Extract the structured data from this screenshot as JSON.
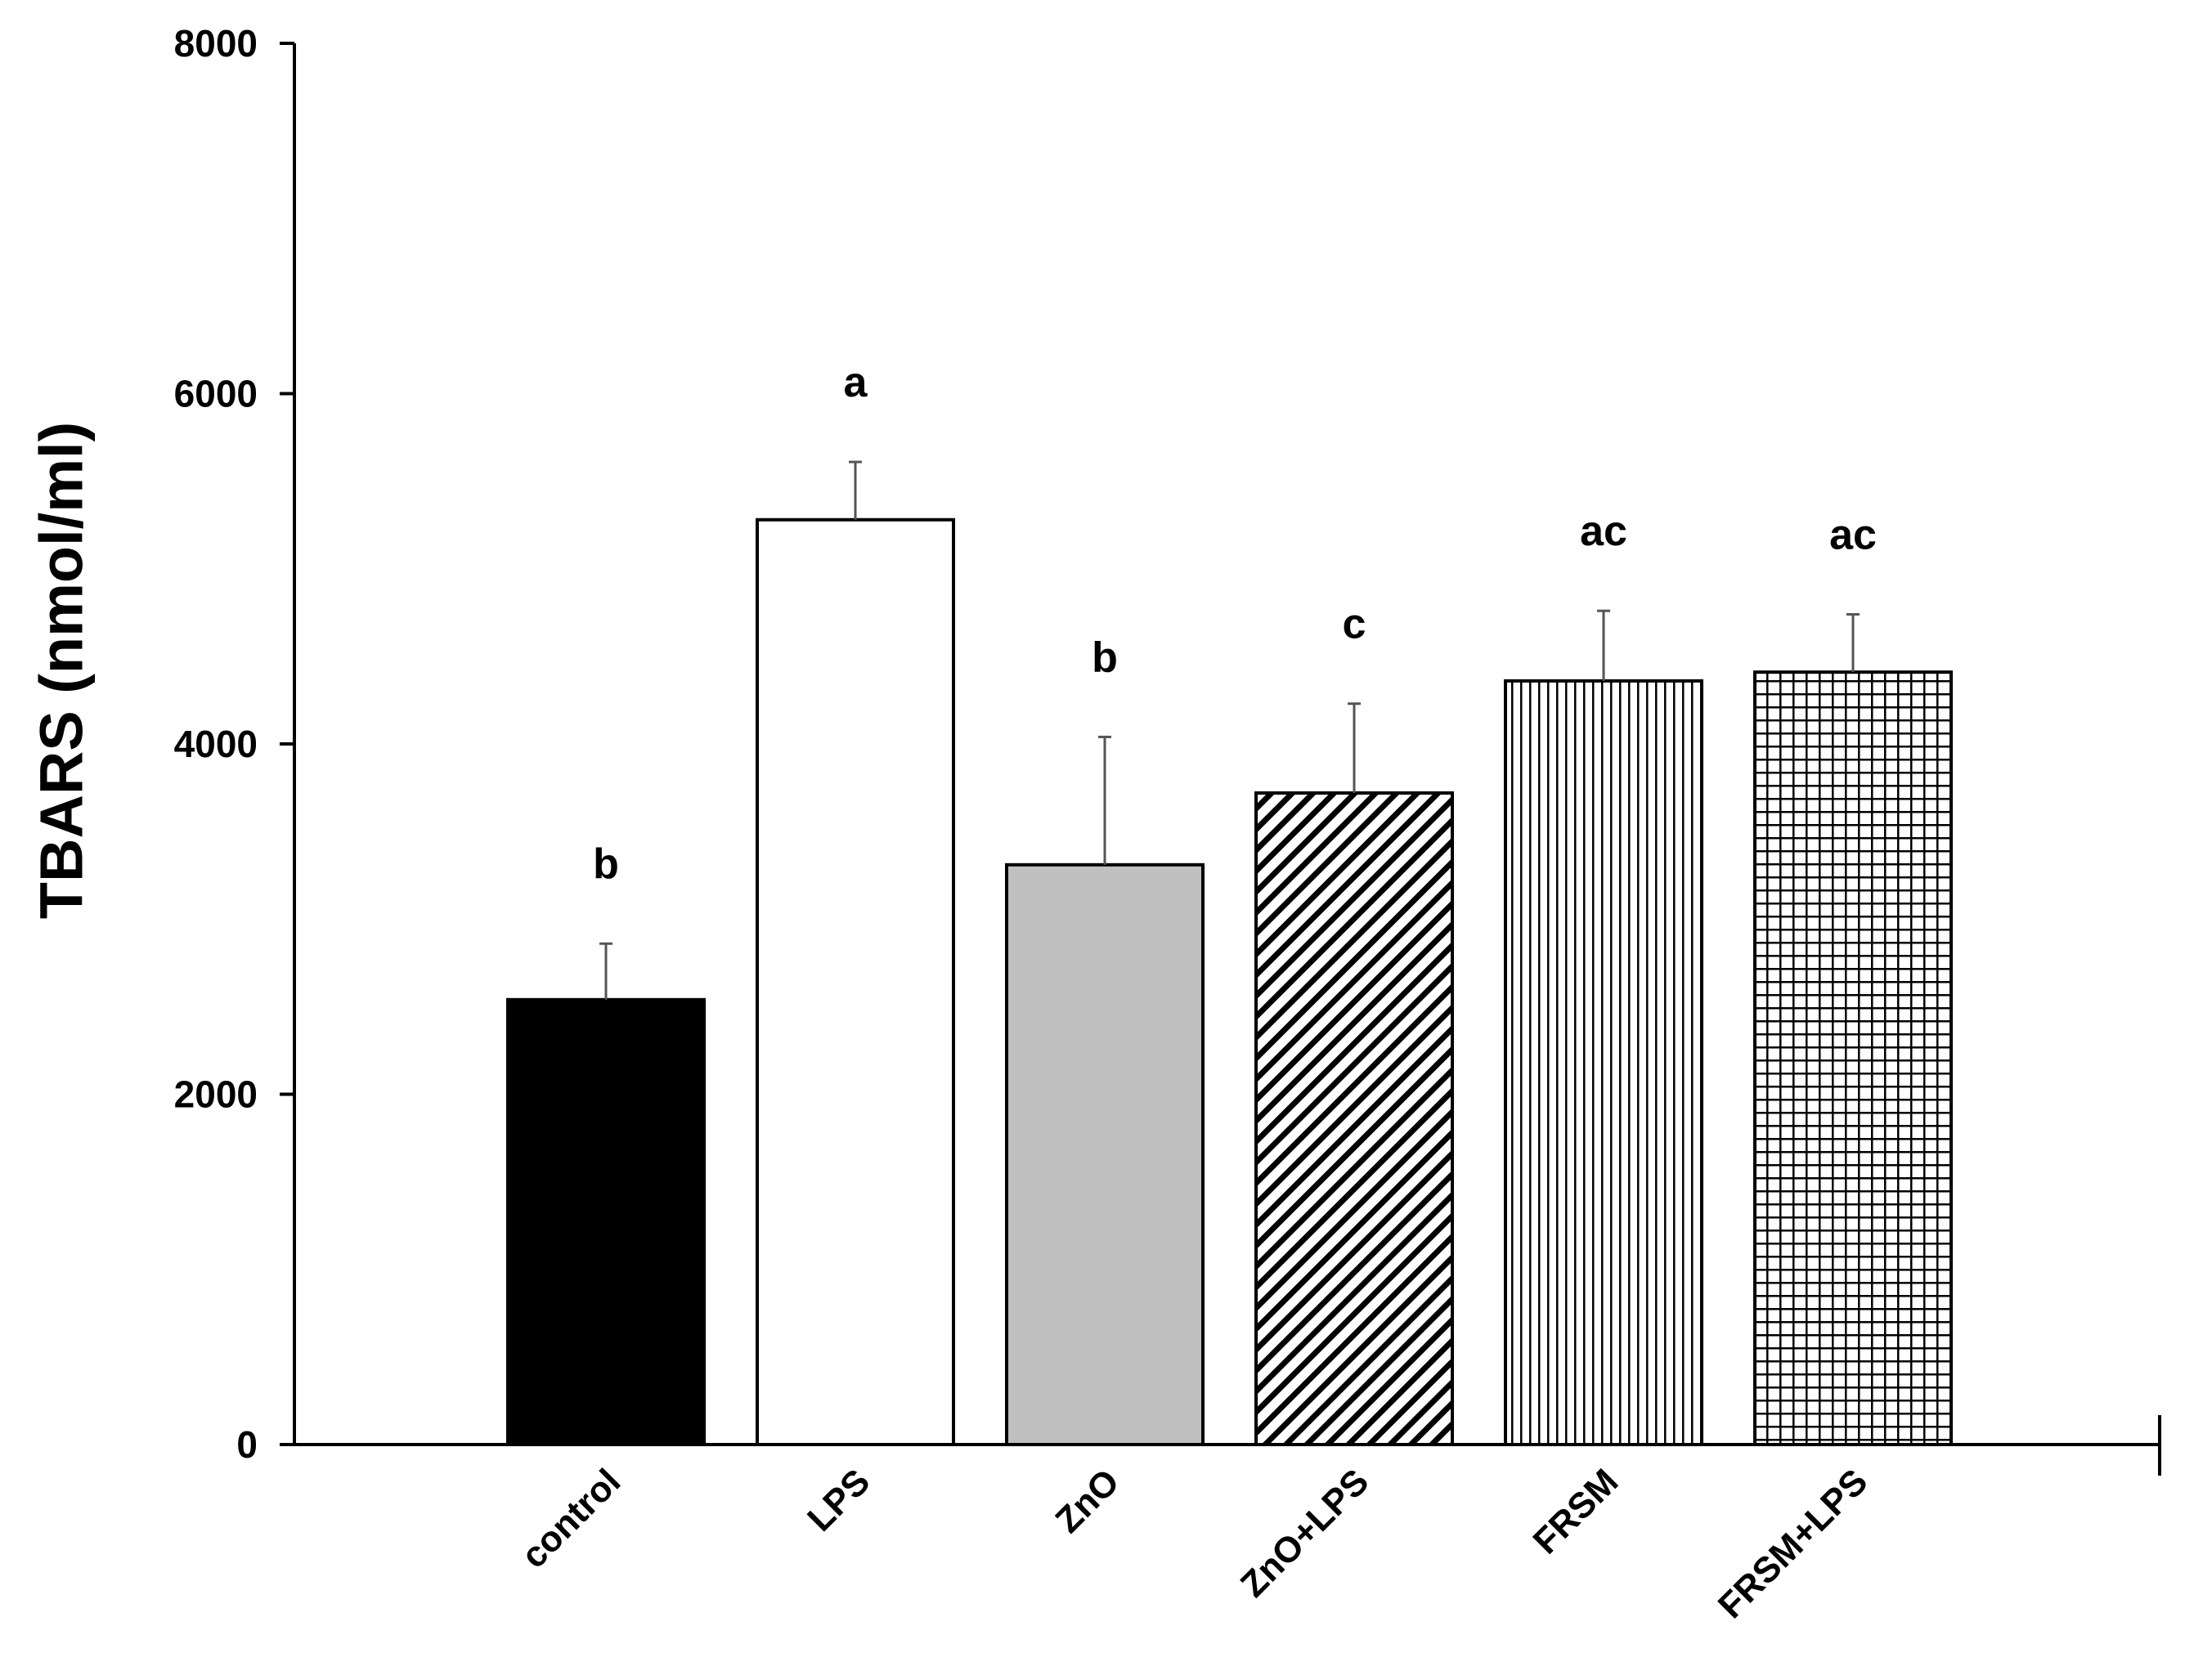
{
  "chart_data": {
    "type": "bar",
    "title": "",
    "xlabel": "",
    "ylabel": "TBARS (nmol/ml)",
    "ylim": [
      0,
      8000
    ],
    "yticks": [
      0,
      2000,
      4000,
      6000,
      8000
    ],
    "ytick_labels": [
      "0",
      "2000",
      "4000",
      "6000",
      "8000"
    ],
    "grid": false,
    "categories": [
      "control",
      "LPS",
      "ZnO",
      "ZnO+LPS",
      "FRSM",
      "FRSM+LPS"
    ],
    "values": [
      2540,
      5280,
      3310,
      3720,
      4360,
      4410
    ],
    "errors": [
      320,
      330,
      730,
      510,
      400,
      330
    ],
    "significance_letters": [
      "b",
      "a",
      "b",
      "c",
      "ac",
      "ac"
    ],
    "bar_fills": [
      {
        "pattern": "solid",
        "color": "#000000"
      },
      {
        "pattern": "solid",
        "color": "#ffffff"
      },
      {
        "pattern": "solid",
        "color": "#c0c0c0"
      },
      {
        "pattern": "diagonal",
        "color": "#000000"
      },
      {
        "pattern": "vertical",
        "color": "#000000"
      },
      {
        "pattern": "grid",
        "color": "#000000"
      }
    ]
  }
}
